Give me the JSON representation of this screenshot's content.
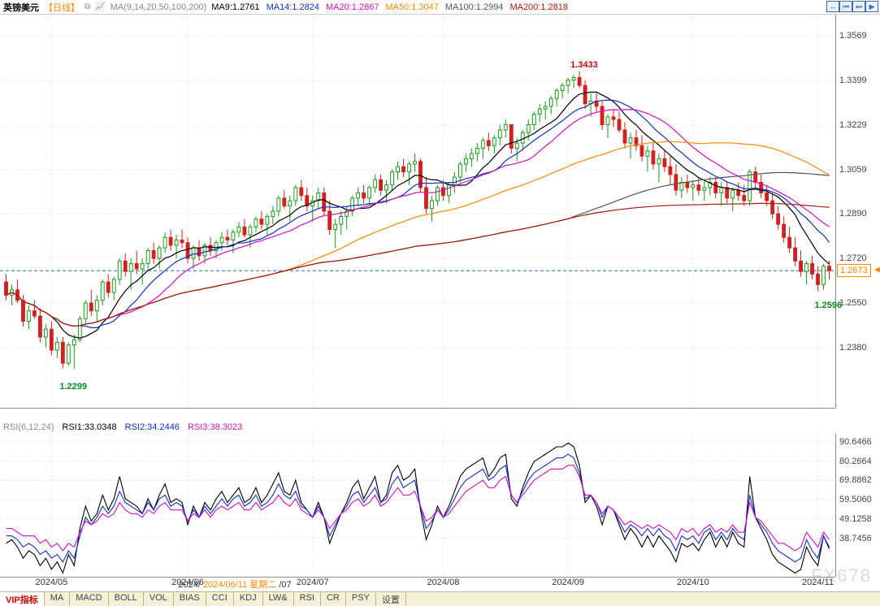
{
  "header": {
    "symbol": "英镑美元",
    "timeframe": "【日线】",
    "ma_title": "MA(9,14,20,50,100,200)",
    "ma_values": [
      {
        "label": "MA9:",
        "value": "1.2761",
        "color": "#000000"
      },
      {
        "label": "MA14:",
        "value": "1.2824",
        "color": "#1030c0"
      },
      {
        "label": "MA20:",
        "value": "1.2867",
        "color": "#d010c0"
      },
      {
        "label": "MA50:",
        "value": "1.3047",
        "color": "#ff8800"
      },
      {
        "label": "MA100:",
        "value": "1.2994",
        "color": "#555555"
      },
      {
        "label": "MA200:",
        "value": "1.2818",
        "color": "#aa1a10"
      }
    ],
    "tool_icons": [
      "↔",
      "⏮",
      "⏭",
      "▶"
    ]
  },
  "price_panel": {
    "ylim": [
      1.215,
      1.365
    ],
    "yticks": [
      1.3569,
      1.3399,
      1.3229,
      1.3059,
      1.289,
      1.272,
      1.255,
      1.238
    ],
    "current_price_tag": 1.2673,
    "hline_price": 1.2673,
    "annotations": [
      {
        "text": "1.2299",
        "x_idx": 12,
        "price": 1.2299,
        "color": "#0a8a20",
        "dy": 16
      },
      {
        "text": "1.3433",
        "x_idx": 102,
        "price": 1.3433,
        "color": "#c01010",
        "dy": -14
      },
      {
        "text": "1.2596",
        "x_idx": 145,
        "price": 1.2596,
        "color": "#0a8a20",
        "dy": 12
      }
    ],
    "candle_colors": {
      "up": "#1a9a1a",
      "up_fill": "#ffffff",
      "down": "#d02020",
      "down_fill": "#d02020"
    },
    "ma_colors": {
      "ma9": "#000000",
      "ma14": "#1030c0",
      "ma20": "#d010c0",
      "ma50": "#ff8800",
      "ma100": "#555555",
      "ma200": "#aa1a10"
    },
    "grid_color": "#d8d8d8",
    "hline_color": "#2a6fb0",
    "candles_ohlc": [
      [
        1.263,
        1.266,
        1.256,
        1.258
      ],
      [
        1.258,
        1.262,
        1.254,
        1.26
      ],
      [
        1.26,
        1.264,
        1.255,
        1.256
      ],
      [
        1.256,
        1.258,
        1.246,
        1.248
      ],
      [
        1.248,
        1.254,
        1.245,
        1.252
      ],
      [
        1.252,
        1.256,
        1.249,
        1.25
      ],
      [
        1.25,
        1.253,
        1.24,
        1.242
      ],
      [
        1.242,
        1.247,
        1.238,
        1.245
      ],
      [
        1.245,
        1.248,
        1.235,
        1.237
      ],
      [
        1.237,
        1.242,
        1.234,
        1.24
      ],
      [
        1.24,
        1.242,
        1.23,
        1.232
      ],
      [
        1.232,
        1.24,
        1.231,
        1.239
      ],
      [
        1.239,
        1.243,
        1.2299,
        1.241
      ],
      [
        1.241,
        1.25,
        1.24,
        1.249
      ],
      [
        1.249,
        1.256,
        1.247,
        1.255
      ],
      [
        1.255,
        1.26,
        1.25,
        1.252
      ],
      [
        1.252,
        1.258,
        1.248,
        1.256
      ],
      [
        1.256,
        1.264,
        1.254,
        1.263
      ],
      [
        1.263,
        1.266,
        1.257,
        1.259
      ],
      [
        1.259,
        1.265,
        1.256,
        1.264
      ],
      [
        1.264,
        1.272,
        1.262,
        1.271
      ],
      [
        1.271,
        1.274,
        1.265,
        1.267
      ],
      [
        1.267,
        1.272,
        1.26,
        1.27
      ],
      [
        1.27,
        1.275,
        1.266,
        1.268
      ],
      [
        1.268,
        1.272,
        1.262,
        1.27
      ],
      [
        1.27,
        1.276,
        1.268,
        1.275
      ],
      [
        1.275,
        1.278,
        1.27,
        1.272
      ],
      [
        1.272,
        1.277,
        1.268,
        1.276
      ],
      [
        1.276,
        1.282,
        1.274,
        1.28
      ],
      [
        1.28,
        1.283,
        1.275,
        1.277
      ],
      [
        1.277,
        1.281,
        1.272,
        1.279
      ],
      [
        1.279,
        1.283,
        1.276,
        1.278
      ],
      [
        1.278,
        1.28,
        1.27,
        1.272
      ],
      [
        1.272,
        1.277,
        1.268,
        1.276
      ],
      [
        1.276,
        1.279,
        1.271,
        1.273
      ],
      [
        1.273,
        1.278,
        1.27,
        1.277
      ],
      [
        1.277,
        1.28,
        1.273,
        1.275
      ],
      [
        1.275,
        1.279,
        1.272,
        1.278
      ],
      [
        1.278,
        1.282,
        1.275,
        1.28
      ],
      [
        1.28,
        1.283,
        1.277,
        1.279
      ],
      [
        1.279,
        1.283,
        1.274,
        1.282
      ],
      [
        1.282,
        1.286,
        1.28,
        1.284
      ],
      [
        1.284,
        1.287,
        1.28,
        1.281
      ],
      [
        1.281,
        1.285,
        1.276,
        1.284
      ],
      [
        1.284,
        1.288,
        1.282,
        1.287
      ],
      [
        1.287,
        1.29,
        1.283,
        1.285
      ],
      [
        1.285,
        1.289,
        1.281,
        1.288
      ],
      [
        1.288,
        1.292,
        1.285,
        1.29
      ],
      [
        1.29,
        1.296,
        1.288,
        1.295
      ],
      [
        1.295,
        1.298,
        1.291,
        1.292
      ],
      [
        1.292,
        1.296,
        1.286,
        1.294
      ],
      [
        1.294,
        1.3,
        1.292,
        1.299
      ],
      [
        1.299,
        1.302,
        1.294,
        1.296
      ],
      [
        1.296,
        1.299,
        1.29,
        1.292
      ],
      [
        1.292,
        1.296,
        1.286,
        1.294
      ],
      [
        1.294,
        1.299,
        1.291,
        1.297
      ],
      [
        1.297,
        1.299,
        1.288,
        1.29
      ],
      [
        1.29,
        1.294,
        1.281,
        1.283
      ],
      [
        1.283,
        1.287,
        1.276,
        1.285
      ],
      [
        1.285,
        1.29,
        1.281,
        1.288
      ],
      [
        1.288,
        1.292,
        1.283,
        1.29
      ],
      [
        1.29,
        1.296,
        1.288,
        1.295
      ],
      [
        1.295,
        1.299,
        1.292,
        1.297
      ],
      [
        1.297,
        1.3,
        1.293,
        1.295
      ],
      [
        1.295,
        1.3,
        1.292,
        1.299
      ],
      [
        1.299,
        1.304,
        1.297,
        1.302
      ],
      [
        1.302,
        1.304,
        1.296,
        1.298
      ],
      [
        1.298,
        1.302,
        1.293,
        1.3
      ],
      [
        1.3,
        1.306,
        1.298,
        1.305
      ],
      [
        1.305,
        1.309,
        1.302,
        1.307
      ],
      [
        1.307,
        1.31,
        1.303,
        1.305
      ],
      [
        1.305,
        1.309,
        1.3,
        1.308
      ],
      [
        1.308,
        1.312,
        1.305,
        1.309
      ],
      [
        1.309,
        1.31,
        1.297,
        1.299
      ],
      [
        1.299,
        1.303,
        1.289,
        1.291
      ],
      [
        1.291,
        1.296,
        1.286,
        1.294
      ],
      [
        1.294,
        1.3,
        1.292,
        1.299
      ],
      [
        1.299,
        1.302,
        1.294,
        1.296
      ],
      [
        1.296,
        1.301,
        1.293,
        1.3
      ],
      [
        1.3,
        1.305,
        1.297,
        1.303
      ],
      [
        1.303,
        1.309,
        1.301,
        1.308
      ],
      [
        1.308,
        1.312,
        1.305,
        1.31
      ],
      [
        1.31,
        1.314,
        1.307,
        1.312
      ],
      [
        1.312,
        1.316,
        1.309,
        1.314
      ],
      [
        1.314,
        1.318,
        1.31,
        1.317
      ],
      [
        1.317,
        1.32,
        1.313,
        1.315
      ],
      [
        1.315,
        1.319,
        1.312,
        1.318
      ],
      [
        1.318,
        1.323,
        1.315,
        1.321
      ],
      [
        1.321,
        1.325,
        1.318,
        1.323
      ],
      [
        1.323,
        1.323,
        1.312,
        1.314
      ],
      [
        1.314,
        1.318,
        1.309,
        1.316
      ],
      [
        1.316,
        1.321,
        1.313,
        1.32
      ],
      [
        1.32,
        1.325,
        1.317,
        1.323
      ],
      [
        1.323,
        1.328,
        1.321,
        1.327
      ],
      [
        1.327,
        1.331,
        1.324,
        1.329
      ],
      [
        1.329,
        1.332,
        1.325,
        1.33
      ],
      [
        1.33,
        1.334,
        1.327,
        1.333
      ],
      [
        1.333,
        1.337,
        1.33,
        1.336
      ],
      [
        1.336,
        1.339,
        1.333,
        1.338
      ],
      [
        1.338,
        1.341,
        1.335,
        1.34
      ],
      [
        1.34,
        1.342,
        1.337,
        1.341
      ],
      [
        1.341,
        1.3433,
        1.337,
        1.338
      ],
      [
        1.338,
        1.34,
        1.329,
        1.331
      ],
      [
        1.331,
        1.335,
        1.326,
        1.332
      ],
      [
        1.332,
        1.335,
        1.328,
        1.33
      ],
      [
        1.33,
        1.332,
        1.321,
        1.323
      ],
      [
        1.323,
        1.327,
        1.318,
        1.326
      ],
      [
        1.326,
        1.329,
        1.322,
        1.325
      ],
      [
        1.325,
        1.328,
        1.32,
        1.321
      ],
      [
        1.321,
        1.324,
        1.314,
        1.316
      ],
      [
        1.316,
        1.32,
        1.31,
        1.318
      ],
      [
        1.318,
        1.321,
        1.313,
        1.315
      ],
      [
        1.315,
        1.319,
        1.309,
        1.311
      ],
      [
        1.311,
        1.315,
        1.305,
        1.313
      ],
      [
        1.313,
        1.316,
        1.306,
        1.308
      ],
      [
        1.308,
        1.312,
        1.301,
        1.31
      ],
      [
        1.31,
        1.313,
        1.305,
        1.307
      ],
      [
        1.307,
        1.311,
        1.3,
        1.304
      ],
      [
        1.304,
        1.308,
        1.296,
        1.298
      ],
      [
        1.298,
        1.303,
        1.295,
        1.301
      ],
      [
        1.301,
        1.304,
        1.297,
        1.299
      ],
      [
        1.299,
        1.302,
        1.294,
        1.3
      ],
      [
        1.3,
        1.303,
        1.296,
        1.298
      ],
      [
        1.298,
        1.302,
        1.294,
        1.299
      ],
      [
        1.299,
        1.303,
        1.296,
        1.301
      ],
      [
        1.301,
        1.303,
        1.295,
        1.297
      ],
      [
        1.297,
        1.301,
        1.292,
        1.299
      ],
      [
        1.299,
        1.301,
        1.293,
        1.295
      ],
      [
        1.295,
        1.299,
        1.29,
        1.298
      ],
      [
        1.298,
        1.301,
        1.294,
        1.296
      ],
      [
        1.296,
        1.3,
        1.292,
        1.294
      ],
      [
        1.294,
        1.306,
        1.292,
        1.305
      ],
      [
        1.305,
        1.307,
        1.299,
        1.301
      ],
      [
        1.301,
        1.304,
        1.295,
        1.297
      ],
      [
        1.297,
        1.3,
        1.292,
        1.294
      ],
      [
        1.294,
        1.297,
        1.287,
        1.289
      ],
      [
        1.289,
        1.292,
        1.283,
        1.285
      ],
      [
        1.285,
        1.288,
        1.278,
        1.28
      ],
      [
        1.28,
        1.284,
        1.274,
        1.276
      ],
      [
        1.276,
        1.28,
        1.269,
        1.271
      ],
      [
        1.271,
        1.275,
        1.265,
        1.267
      ],
      [
        1.267,
        1.271,
        1.262,
        1.27
      ],
      [
        1.27,
        1.273,
        1.264,
        1.266
      ],
      [
        1.266,
        1.269,
        1.2596,
        1.262
      ],
      [
        1.262,
        1.27,
        1.26,
        1.269
      ],
      [
        1.269,
        1.271,
        1.264,
        1.2673
      ]
    ]
  },
  "rsi_panel": {
    "title": "RSI(6,12,24)",
    "values": [
      {
        "label": "RSI1:",
        "value": "33.0348",
        "color": "#000000"
      },
      {
        "label": "RSI2:",
        "value": "34.2446",
        "color": "#1030c0"
      },
      {
        "label": "RSI3:",
        "value": "38.3023",
        "color": "#d010c0"
      }
    ],
    "ylim": [
      18,
      95
    ],
    "yticks": [
      90.6466,
      80.2664,
      69.8862,
      59.506,
      49.1258,
      38.7456
    ],
    "line_colors": {
      "rsi1": "#000000",
      "rsi2": "#1030c0",
      "rsi3": "#d010c0"
    },
    "rsi1": [
      36,
      38,
      34,
      28,
      32,
      30,
      24,
      28,
      22,
      26,
      20,
      30,
      24,
      44,
      56,
      48,
      52,
      62,
      54,
      60,
      72,
      60,
      58,
      56,
      52,
      60,
      54,
      62,
      68,
      58,
      60,
      58,
      46,
      56,
      50,
      58,
      54,
      60,
      64,
      58,
      62,
      66,
      58,
      60,
      66,
      58,
      62,
      68,
      74,
      64,
      62,
      70,
      58,
      54,
      50,
      58,
      50,
      36,
      44,
      52,
      58,
      66,
      70,
      60,
      66,
      72,
      58,
      62,
      74,
      78,
      70,
      72,
      76,
      54,
      38,
      46,
      56,
      50,
      56,
      64,
      72,
      76,
      78,
      80,
      82,
      72,
      76,
      82,
      84,
      60,
      56,
      66,
      74,
      80,
      82,
      84,
      86,
      88,
      88,
      90,
      88,
      78,
      58,
      62,
      56,
      46,
      56,
      54,
      46,
      38,
      44,
      40,
      34,
      40,
      34,
      40,
      36,
      32,
      26,
      36,
      34,
      36,
      32,
      38,
      42,
      34,
      40,
      34,
      42,
      36,
      34,
      72,
      50,
      44,
      38,
      30,
      26,
      24,
      22,
      20,
      22,
      34,
      28,
      24,
      40,
      33
    ],
    "rsi2": [
      40,
      40,
      38,
      34,
      36,
      34,
      30,
      32,
      28,
      30,
      26,
      32,
      28,
      40,
      50,
      46,
      50,
      56,
      52,
      56,
      64,
      58,
      56,
      54,
      52,
      58,
      54,
      60,
      62,
      56,
      58,
      56,
      48,
      54,
      50,
      56,
      52,
      56,
      60,
      56,
      60,
      62,
      56,
      58,
      62,
      56,
      58,
      62,
      68,
      62,
      60,
      64,
      56,
      54,
      50,
      56,
      50,
      40,
      46,
      52,
      56,
      62,
      64,
      58,
      62,
      66,
      58,
      60,
      68,
      72,
      66,
      68,
      70,
      56,
      44,
      48,
      54,
      50,
      54,
      60,
      66,
      70,
      72,
      74,
      76,
      70,
      72,
      76,
      78,
      62,
      58,
      64,
      70,
      74,
      76,
      78,
      80,
      82,
      82,
      84,
      82,
      74,
      60,
      62,
      58,
      50,
      56,
      54,
      48,
      42,
      46,
      44,
      40,
      44,
      40,
      44,
      40,
      38,
      32,
      40,
      38,
      40,
      36,
      42,
      44,
      38,
      42,
      38,
      44,
      40,
      38,
      62,
      50,
      46,
      42,
      36,
      32,
      30,
      28,
      26,
      28,
      38,
      32,
      28,
      40,
      34
    ],
    "rsi3": [
      44,
      44,
      42,
      40,
      40,
      40,
      36,
      38,
      34,
      36,
      32,
      36,
      34,
      42,
      48,
      46,
      48,
      52,
      50,
      52,
      58,
      54,
      52,
      52,
      50,
      54,
      52,
      56,
      58,
      54,
      54,
      54,
      48,
      52,
      50,
      54,
      50,
      54,
      56,
      54,
      56,
      58,
      54,
      54,
      58,
      54,
      56,
      58,
      62,
      58,
      56,
      60,
      54,
      52,
      50,
      54,
      50,
      44,
      48,
      52,
      54,
      58,
      60,
      56,
      58,
      62,
      56,
      58,
      62,
      66,
      62,
      62,
      64,
      56,
      48,
      50,
      54,
      50,
      52,
      56,
      60,
      64,
      66,
      68,
      70,
      66,
      66,
      70,
      72,
      62,
      58,
      62,
      66,
      70,
      72,
      74,
      76,
      76,
      76,
      78,
      78,
      72,
      62,
      62,
      58,
      52,
      56,
      54,
      50,
      46,
      48,
      46,
      44,
      46,
      44,
      46,
      44,
      42,
      38,
      44,
      42,
      44,
      40,
      44,
      46,
      42,
      44,
      42,
      46,
      42,
      42,
      58,
      50,
      48,
      44,
      40,
      36,
      36,
      34,
      32,
      34,
      42,
      38,
      34,
      42,
      38
    ]
  },
  "xaxis": {
    "n_points": 146,
    "ticks": [
      {
        "idx": 8,
        "label": "2024/05"
      },
      {
        "idx": 32,
        "label": "2024/06"
      },
      {
        "idx": 54,
        "label": "2024/07"
      },
      {
        "idx": 77,
        "label": "2024/08"
      },
      {
        "idx": 99,
        "label": "2024/09"
      },
      {
        "idx": 121,
        "label": "2024/10"
      },
      {
        "idx": 143,
        "label": "2024/11"
      }
    ],
    "crosshair_tick": {
      "idx": 36,
      "label": "2024/06/11 星期二",
      "adjacent": "/07",
      "prefix": "2024/"
    }
  },
  "tabs": {
    "items": [
      "VIP指标",
      "MA",
      "MACD",
      "BOLL",
      "VOL",
      "BIAS",
      "CCI",
      "KDJ",
      "LW&",
      "RSI",
      "CR",
      "PSY",
      "设置"
    ],
    "active_index": 0
  },
  "watermark": "FX678"
}
